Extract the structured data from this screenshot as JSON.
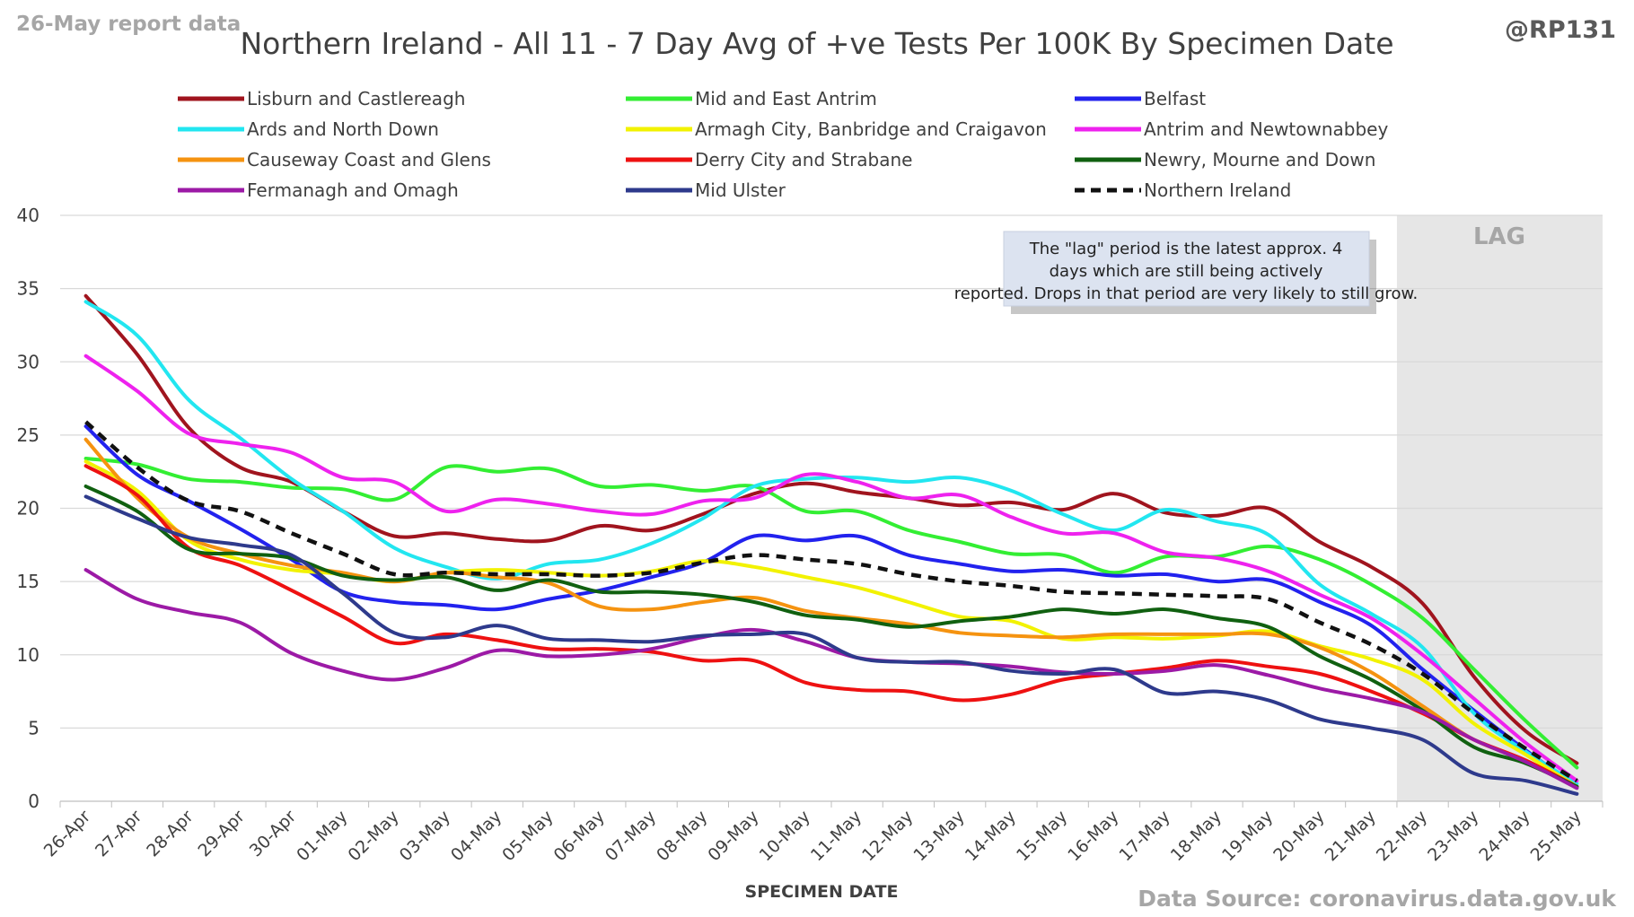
{
  "header": {
    "report_label": "26-May report data",
    "handle": "@RP131",
    "source": "Data Source: coronavirus.data.gov.uk"
  },
  "chart_data": {
    "type": "line",
    "title": "Northern Ireland - All 11 - 7 Day Avg of +ve Tests Per 100K By Specimen Date",
    "xlabel": "SPECIMEN DATE",
    "ylabel": "",
    "ylim": [
      0,
      40
    ],
    "yticks": [
      0,
      5,
      10,
      15,
      20,
      25,
      30,
      35,
      40
    ],
    "grid": "horizontal",
    "legend_position": "top",
    "lag_label": "LAG",
    "lag_from_category": "22-May",
    "lag_color": "#e6e6e6",
    "annotation": "The \"lag\" period is the latest approx. 4 days which are still being actively reported. Drops in that period are very likely to still grow.",
    "categories": [
      "26-Apr",
      "27-Apr",
      "28-Apr",
      "29-Apr",
      "30-Apr",
      "01-May",
      "02-May",
      "03-May",
      "04-May",
      "05-May",
      "06-May",
      "07-May",
      "08-May",
      "09-May",
      "10-May",
      "11-May",
      "12-May",
      "13-May",
      "14-May",
      "15-May",
      "16-May",
      "17-May",
      "18-May",
      "19-May",
      "20-May",
      "21-May",
      "22-May",
      "23-May",
      "24-May",
      "25-May"
    ],
    "series": [
      {
        "name": "Lisburn and Castlereagh",
        "color": "#a0141e",
        "dash": false,
        "values": [
          34.5,
          30.5,
          25.5,
          22.8,
          21.8,
          19.8,
          18.1,
          18.3,
          17.9,
          17.8,
          18.8,
          18.5,
          19.6,
          21.0,
          21.7,
          21.1,
          20.7,
          20.2,
          20.4,
          19.9,
          21.0,
          19.7,
          19.5,
          20.0,
          17.7,
          16.0,
          13.5,
          8.5,
          4.8,
          2.6
        ]
      },
      {
        "name": "Mid and East Antrim",
        "color": "#33ee33",
        "dash": false,
        "values": [
          23.4,
          23.0,
          22.0,
          21.8,
          21.4,
          21.3,
          20.6,
          22.8,
          22.5,
          22.7,
          21.5,
          21.6,
          21.2,
          21.5,
          19.8,
          19.8,
          18.5,
          17.7,
          16.9,
          16.8,
          15.6,
          16.7,
          16.7,
          17.4,
          16.5,
          14.8,
          12.5,
          9.0,
          5.5,
          2.3
        ]
      },
      {
        "name": "Belfast",
        "color": "#2222ee",
        "dash": false,
        "values": [
          25.6,
          22.3,
          20.5,
          18.6,
          16.5,
          14.3,
          13.6,
          13.4,
          13.1,
          13.8,
          14.4,
          15.3,
          16.3,
          18.1,
          17.8,
          18.1,
          16.8,
          16.2,
          15.7,
          15.8,
          15.4,
          15.5,
          15.0,
          15.1,
          13.6,
          12.0,
          9.0,
          6.2,
          3.5,
          1.0
        ]
      },
      {
        "name": "Ards and North Down",
        "color": "#22e6f0",
        "dash": false,
        "values": [
          34.1,
          31.8,
          27.4,
          24.8,
          22.0,
          19.8,
          17.3,
          16.0,
          15.2,
          16.2,
          16.5,
          17.6,
          19.3,
          21.5,
          22.0,
          22.1,
          21.8,
          22.1,
          21.2,
          19.6,
          18.5,
          19.9,
          19.1,
          18.2,
          14.8,
          12.8,
          10.5,
          6.0,
          3.4,
          1.2
        ]
      },
      {
        "name": "Armagh City, Banbridge and Craigavon",
        "color": "#f2f200",
        "dash": false,
        "values": [
          23.2,
          21.2,
          17.8,
          16.5,
          15.8,
          15.5,
          15.0,
          15.6,
          15.8,
          15.6,
          15.4,
          15.7,
          16.4,
          16.0,
          15.3,
          14.6,
          13.6,
          12.6,
          12.3,
          11.1,
          11.2,
          11.1,
          11.3,
          11.6,
          10.6,
          9.7,
          8.3,
          5.3,
          3.2,
          1.0
        ]
      },
      {
        "name": "Antrim and Newtownabbey",
        "color": "#ee22ee",
        "dash": false,
        "values": [
          30.4,
          28.0,
          25.1,
          24.4,
          23.8,
          22.1,
          21.8,
          19.8,
          20.6,
          20.3,
          19.8,
          19.6,
          20.5,
          20.7,
          22.3,
          21.8,
          20.7,
          20.9,
          19.4,
          18.3,
          18.3,
          17.0,
          16.6,
          15.7,
          14.1,
          12.5,
          10.0,
          7.0,
          4.0,
          1.4
        ]
      },
      {
        "name": "Causeway Coast and Glens",
        "color": "#f59310",
        "dash": false,
        "values": [
          24.7,
          20.7,
          18.0,
          16.9,
          16.1,
          15.6,
          15.0,
          15.6,
          15.3,
          14.9,
          13.3,
          13.1,
          13.6,
          13.9,
          13.0,
          12.5,
          12.1,
          11.5,
          11.3,
          11.2,
          11.4,
          11.4,
          11.4,
          11.4,
          10.5,
          8.8,
          6.5,
          4.2,
          2.8,
          1.0
        ]
      },
      {
        "name": "Derry City and Strabane",
        "color": "#ee1111",
        "dash": false,
        "values": [
          22.9,
          20.9,
          17.3,
          16.1,
          14.4,
          12.6,
          10.8,
          11.4,
          11.0,
          10.4,
          10.4,
          10.2,
          9.6,
          9.6,
          8.1,
          7.6,
          7.5,
          6.9,
          7.3,
          8.3,
          8.7,
          9.1,
          9.6,
          9.2,
          8.7,
          7.5,
          6.0,
          4.2,
          2.8,
          1.0
        ]
      },
      {
        "name": "Newry, Mourne and Down",
        "color": "#106010",
        "dash": false,
        "values": [
          21.5,
          19.8,
          17.2,
          16.9,
          16.6,
          15.4,
          15.1,
          15.3,
          14.4,
          15.1,
          14.3,
          14.3,
          14.1,
          13.6,
          12.7,
          12.4,
          11.9,
          12.3,
          12.6,
          13.1,
          12.8,
          13.1,
          12.5,
          11.9,
          9.9,
          8.3,
          6.2,
          3.7,
          2.6,
          1.0
        ]
      },
      {
        "name": "Fermanagh and Omagh",
        "color": "#9c1aa6",
        "dash": false,
        "values": [
          15.8,
          13.8,
          12.9,
          12.2,
          10.1,
          8.9,
          8.3,
          9.1,
          10.3,
          9.9,
          10.0,
          10.4,
          11.2,
          11.7,
          10.9,
          9.8,
          9.5,
          9.4,
          9.2,
          8.8,
          8.7,
          8.9,
          9.3,
          8.6,
          7.7,
          7.0,
          6.1,
          4.2,
          2.7,
          0.9
        ]
      },
      {
        "name": "Mid Ulster",
        "color": "#2e3a8c",
        "dash": false,
        "values": [
          20.8,
          19.3,
          18.0,
          17.5,
          16.8,
          14.2,
          11.5,
          11.2,
          12.0,
          11.1,
          11.0,
          10.9,
          11.3,
          11.4,
          11.4,
          9.8,
          9.5,
          9.5,
          8.9,
          8.7,
          9.0,
          7.4,
          7.5,
          6.9,
          5.6,
          5.0,
          4.2,
          1.9,
          1.4,
          0.5
        ]
      },
      {
        "name": "Northern Ireland",
        "color": "#111111",
        "dash": true,
        "values": [
          25.9,
          22.8,
          20.5,
          19.8,
          18.3,
          16.9,
          15.5,
          15.6,
          15.5,
          15.5,
          15.4,
          15.6,
          16.3,
          16.8,
          16.5,
          16.2,
          15.5,
          15.0,
          14.7,
          14.3,
          14.2,
          14.1,
          14.0,
          13.8,
          12.2,
          10.7,
          8.7,
          6.0,
          3.6,
          1.4
        ]
      }
    ]
  }
}
